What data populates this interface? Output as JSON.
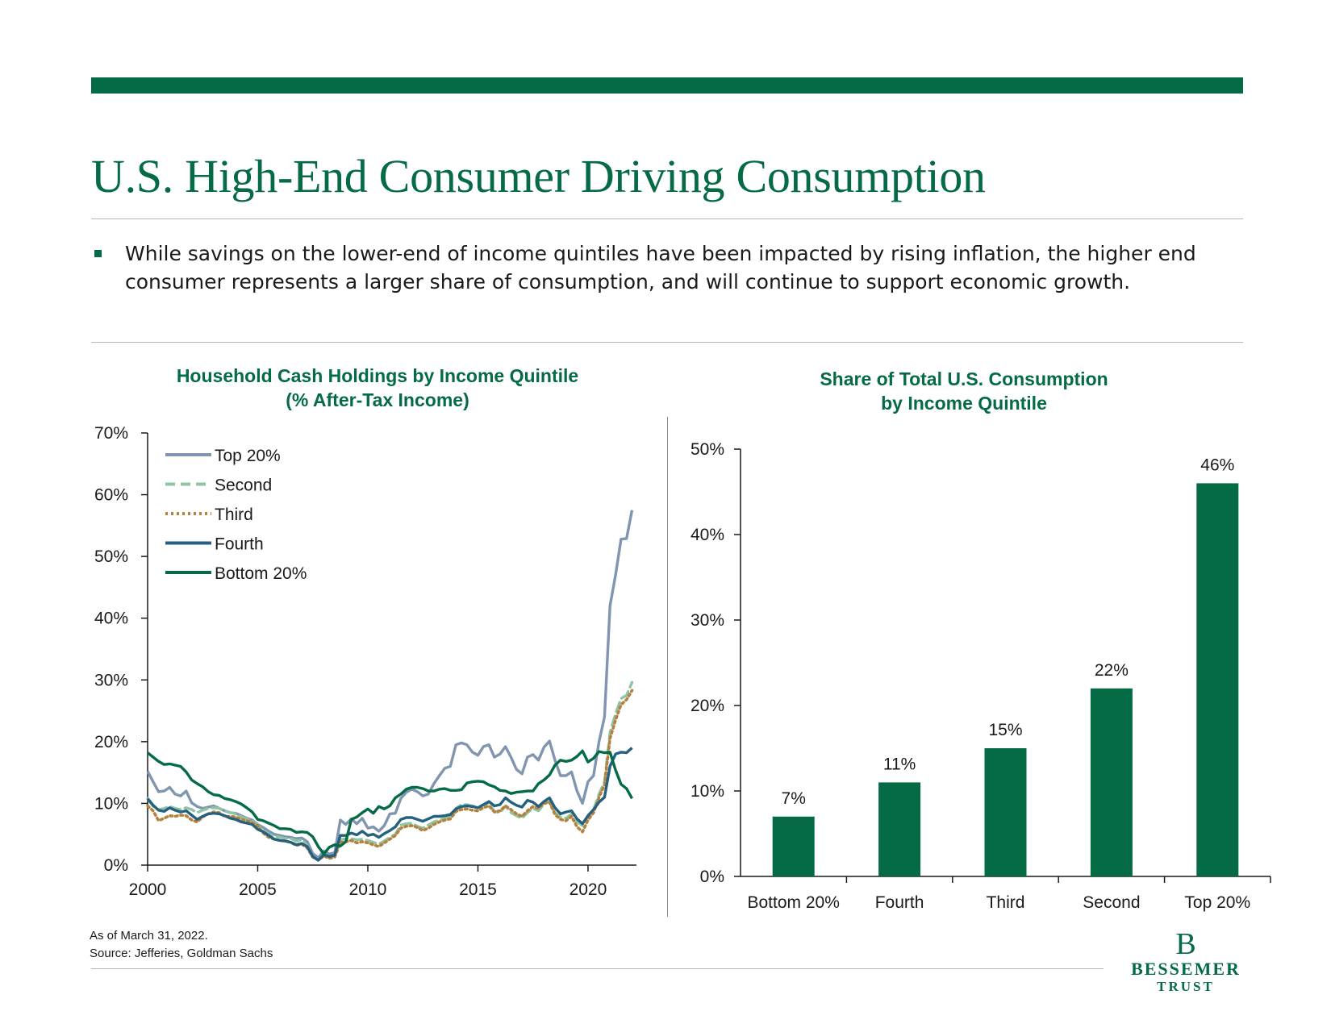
{
  "header": {
    "title": "U.S. High-End Consumer Driving Consumption",
    "bullet": "While savings on the lower-end of income quintiles have been impacted by rising inflation, the higher end consumer represents a larger share of consumption, and will continue to support economic growth."
  },
  "colors": {
    "brand_green": "#046b45",
    "top20": "#7f95b0",
    "second": "#8ec6a5",
    "third": "#b5813f",
    "fourth": "#24607f",
    "bottom20": "#046b45"
  },
  "chart_data": [
    {
      "type": "line",
      "title": "Household Cash Holdings by Income Quintile",
      "subtitle": "(% After-Tax Income)",
      "xlabel": "",
      "ylabel": "",
      "x": [
        2000,
        2000.25,
        2000.5,
        2000.75,
        2001,
        2001.25,
        2001.5,
        2001.75,
        2002,
        2002.25,
        2002.5,
        2002.75,
        2003,
        2003.25,
        2003.5,
        2003.75,
        2004,
        2004.25,
        2004.5,
        2004.75,
        2005,
        2005.25,
        2005.5,
        2005.75,
        2006,
        2006.25,
        2006.5,
        2006.75,
        2007,
        2007.25,
        2007.5,
        2007.75,
        2008,
        2008.25,
        2008.5,
        2008.75,
        2009,
        2009.25,
        2009.5,
        2009.75,
        2010,
        2010.25,
        2010.5,
        2010.75,
        2011,
        2011.25,
        2011.5,
        2011.75,
        2012,
        2012.25,
        2012.5,
        2012.75,
        2013,
        2013.25,
        2013.5,
        2013.75,
        2014,
        2014.25,
        2014.5,
        2014.75,
        2015,
        2015.25,
        2015.5,
        2015.75,
        2016,
        2016.25,
        2016.5,
        2016.75,
        2017,
        2017.25,
        2017.5,
        2017.75,
        2018,
        2018.25,
        2018.5,
        2018.75,
        2019,
        2019.25,
        2019.5,
        2019.75,
        2020,
        2020.25,
        2020.5,
        2020.75,
        2021,
        2021.25,
        2021.5,
        2021.75,
        2022
      ],
      "series": [
        {
          "name": "Top 20%",
          "style": "solid",
          "color_key": "top20",
          "values": [
            15.2,
            13.5,
            11.9,
            12.0,
            12.6,
            11.5,
            11.2,
            12.0,
            10.1,
            9.5,
            9.2,
            9.4,
            9.6,
            9.2,
            8.8,
            8.5,
            8.4,
            8.0,
            7.6,
            7.3,
            6.6,
            6.1,
            5.5,
            5.0,
            4.8,
            4.6,
            4.5,
            4.3,
            4.4,
            3.8,
            1.9,
            1.2,
            2.3,
            1.8,
            2.0,
            7.3,
            6.6,
            7.5,
            6.7,
            7.6,
            6.0,
            6.2,
            5.5,
            6.4,
            8.3,
            8.4,
            10.8,
            11.8,
            12.3,
            11.9,
            11.2,
            11.5,
            13.2,
            14.5,
            15.7,
            16.0,
            19.5,
            19.8,
            19.5,
            18.3,
            17.8,
            19.2,
            19.5,
            17.5,
            18.0,
            19.2,
            17.5,
            15.5,
            14.8,
            17.5,
            17.9,
            17.0,
            19.1,
            20.1,
            17.0,
            14.5,
            14.5,
            15.1,
            12.0,
            10.0,
            13.5,
            14.5,
            20.0,
            24.0,
            42.0,
            47.0,
            52.8,
            52.9,
            57.5
          ]
        },
        {
          "name": "Second",
          "style": "dashed",
          "color_key": "second",
          "values": [
            10.8,
            9.5,
            9.0,
            9.2,
            9.5,
            9.2,
            9.0,
            9.3,
            9.0,
            8.5,
            8.9,
            9.2,
            9.3,
            9.2,
            8.8,
            8.5,
            8.3,
            7.8,
            7.5,
            7.2,
            6.5,
            5.6,
            5.0,
            4.7,
            4.5,
            4.3,
            4.3,
            3.9,
            4.1,
            3.2,
            1.3,
            0.9,
            1.8,
            1.2,
            1.5,
            4.1,
            4.3,
            4.3,
            4.1,
            4.2,
            4.0,
            3.7,
            3.4,
            3.9,
            4.5,
            5.0,
            6.5,
            6.7,
            6.8,
            6.3,
            6.0,
            6.5,
            7.0,
            7.3,
            7.6,
            8.0,
            9.2,
            9.8,
            9.8,
            9.6,
            9.3,
            9.8,
            10.0,
            8.7,
            8.5,
            9.6,
            8.5,
            8.0,
            7.6,
            8.5,
            9.2,
            8.8,
            9.9,
            10.3,
            8.5,
            7.8,
            7.6,
            8.3,
            7.0,
            6.4,
            8.0,
            9.0,
            11.5,
            13.5,
            21.5,
            24.5,
            27.0,
            27.5,
            29.6
          ]
        },
        {
          "name": "Third",
          "style": "dotted",
          "color_key": "third",
          "values": [
            9.6,
            8.8,
            7.2,
            7.6,
            8.0,
            7.9,
            8.1,
            8.0,
            7.3,
            7.0,
            7.8,
            8.3,
            8.6,
            8.5,
            7.9,
            7.9,
            7.8,
            7.4,
            7.2,
            6.9,
            6.4,
            5.2,
            4.5,
            4.2,
            4.0,
            3.9,
            3.7,
            3.2,
            3.4,
            2.8,
            1.3,
            0.8,
            1.5,
            1.1,
            1.3,
            3.7,
            3.8,
            4.0,
            3.6,
            3.8,
            3.6,
            3.3,
            3.0,
            3.6,
            4.2,
            4.8,
            6.0,
            6.3,
            6.4,
            6.1,
            5.6,
            6.0,
            6.6,
            7.0,
            7.3,
            7.5,
            8.7,
            9.0,
            9.1,
            8.9,
            8.8,
            9.3,
            9.6,
            8.6,
            8.8,
            9.6,
            9.0,
            8.3,
            7.9,
            8.8,
            9.5,
            9.2,
            10.0,
            10.2,
            8.2,
            7.4,
            7.2,
            7.9,
            6.2,
            5.4,
            7.3,
            8.5,
            11.0,
            13.0,
            20.5,
            23.5,
            26.0,
            26.8,
            28.3
          ]
        },
        {
          "name": "Fourth",
          "style": "solid",
          "color_key": "fourth",
          "values": [
            10.8,
            9.7,
            8.9,
            8.7,
            9.3,
            8.9,
            8.6,
            8.8,
            8.1,
            7.4,
            7.9,
            8.3,
            8.4,
            8.3,
            8.0,
            7.6,
            7.4,
            7.0,
            6.8,
            6.6,
            5.8,
            5.4,
            4.8,
            4.2,
            4.0,
            3.9,
            3.7,
            3.3,
            3.5,
            3.0,
            1.4,
            0.8,
            1.7,
            1.4,
            1.6,
            4.8,
            4.8,
            5.2,
            4.9,
            5.5,
            4.8,
            5.0,
            4.5,
            5.1,
            5.6,
            6.2,
            7.4,
            7.7,
            7.7,
            7.4,
            7.1,
            7.5,
            7.9,
            7.9,
            8.0,
            8.2,
            9.1,
            9.5,
            9.6,
            9.5,
            9.3,
            9.8,
            10.3,
            9.6,
            9.8,
            10.9,
            10.2,
            9.7,
            9.4,
            10.5,
            10.2,
            9.5,
            10.3,
            10.9,
            9.3,
            8.3,
            8.6,
            8.8,
            7.5,
            6.7,
            8.0,
            9.0,
            10.2,
            11.0,
            16.0,
            18.0,
            18.3,
            18.2,
            19.0
          ]
        },
        {
          "name": "Bottom 20%",
          "style": "solid",
          "color_key": "bottom20",
          "values": [
            18.2,
            17.5,
            16.8,
            16.3,
            16.4,
            16.2,
            16.0,
            15.1,
            13.8,
            13.2,
            12.7,
            11.9,
            11.4,
            11.3,
            10.8,
            10.6,
            10.3,
            9.9,
            9.3,
            8.6,
            7.4,
            7.2,
            6.8,
            6.4,
            5.9,
            5.9,
            5.8,
            5.3,
            5.4,
            5.3,
            4.6,
            3.0,
            1.8,
            2.9,
            3.3,
            3.1,
            3.8,
            7.4,
            7.8,
            8.5,
            9.1,
            8.4,
            9.5,
            9.1,
            9.6,
            10.9,
            11.5,
            12.3,
            12.6,
            12.6,
            12.4,
            12.0,
            12.0,
            12.3,
            12.4,
            12.1,
            12.1,
            12.2,
            13.3,
            13.5,
            13.6,
            13.5,
            13.0,
            12.7,
            12.1,
            12.0,
            11.6,
            11.8,
            11.9,
            12.0,
            12.0,
            13.2,
            13.8,
            14.6,
            16.2,
            17.0,
            16.8,
            17.0,
            17.6,
            18.5,
            16.7,
            17.3,
            18.4,
            18.2,
            18.3,
            15.4,
            13.1,
            12.4,
            10.8
          ]
        }
      ],
      "ylim": [
        0,
        70
      ],
      "yticks": [
        0,
        10,
        20,
        30,
        40,
        50,
        60,
        70
      ],
      "ytick_labels": [
        "0%",
        "10%",
        "20%",
        "30%",
        "40%",
        "50%",
        "60%",
        "70%"
      ],
      "xlim": [
        2000,
        2022.2
      ],
      "xticks": [
        2000,
        2005,
        2010,
        2015,
        2020
      ],
      "xtick_labels": [
        "2000",
        "2005",
        "2010",
        "2015",
        "2020"
      ],
      "legend": "top-left",
      "grid": false
    },
    {
      "type": "bar",
      "title": "Share of Total U.S. Consumption",
      "subtitle": "by Income Quintile",
      "categories": [
        "Bottom 20%",
        "Fourth",
        "Third",
        "Second",
        "Top 20%"
      ],
      "values": [
        7,
        11,
        15,
        22,
        46
      ],
      "data_labels": [
        "7%",
        "11%",
        "15%",
        "22%",
        "46%"
      ],
      "ylim": [
        0,
        50
      ],
      "yticks": [
        0,
        10,
        20,
        30,
        40,
        50
      ],
      "ytick_labels": [
        "0%",
        "10%",
        "20%",
        "30%",
        "40%",
        "50%"
      ],
      "xlabel": "",
      "ylabel": "",
      "legend": "none",
      "grid": false
    }
  ],
  "footer": {
    "date_note": "As of March 31, 2022.",
    "source": "Source: Jefferies, Goldman Sachs",
    "logo_mark": "B",
    "logo_name": "BESSEMER",
    "logo_sub": "TRUST"
  }
}
